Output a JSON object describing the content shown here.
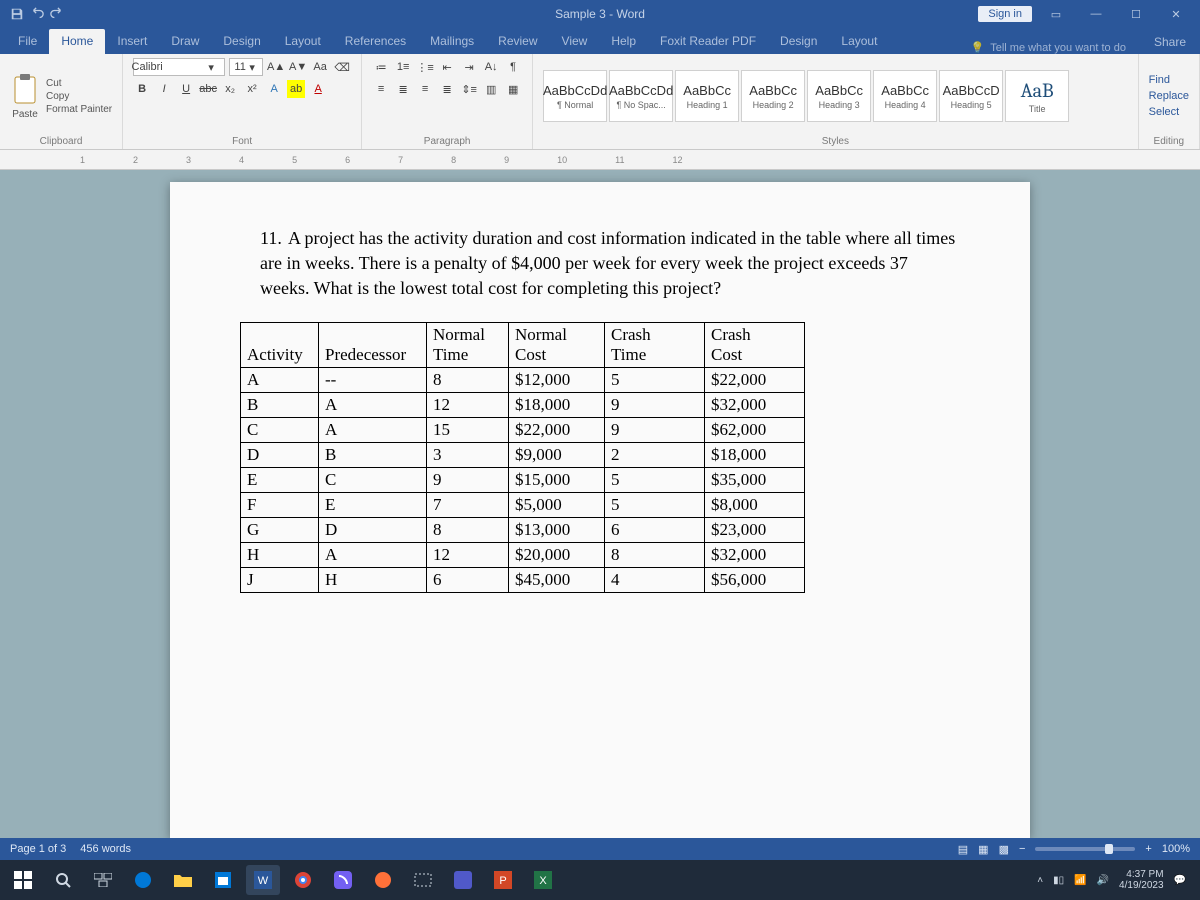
{
  "app": {
    "doc_title": "Sample 3 - Word",
    "signin": "Sign in",
    "tellme": "Tell me what you want to do",
    "share": "Share"
  },
  "tabs": {
    "file": "File",
    "home": "Home",
    "insert": "Insert",
    "draw": "Draw",
    "design": "Design",
    "layout": "Layout",
    "references": "References",
    "mailings": "Mailings",
    "review": "Review",
    "view": "View",
    "help": "Help",
    "foxit": "Foxit Reader PDF",
    "format": "Design",
    "layout2": "Layout"
  },
  "ribbon": {
    "clipboard": {
      "paste": "Paste",
      "cut": "Cut",
      "copy": "Copy",
      "painter": "Format Painter",
      "label": "Clipboard"
    },
    "font": {
      "name": "Calibri",
      "size": "11",
      "label": "Font"
    },
    "paragraph": {
      "label": "Paragraph"
    },
    "styles": {
      "label": "Styles",
      "items": [
        {
          "sample": "AaBbCcDd",
          "name": "¶ Normal"
        },
        {
          "sample": "AaBbCcDd",
          "name": "¶ No Spac..."
        },
        {
          "sample": "AaBbCc",
          "name": "Heading 1"
        },
        {
          "sample": "AaBbCc",
          "name": "Heading 2"
        },
        {
          "sample": "AaBbCc",
          "name": "Heading 3"
        },
        {
          "sample": "AaBbCc",
          "name": "Heading 4"
        },
        {
          "sample": "AaBbCcD",
          "name": "Heading 5"
        },
        {
          "sample": "AaB",
          "name": "Title"
        }
      ]
    },
    "editing": {
      "find": "Find",
      "replace": "Replace",
      "select": "Select",
      "label": "Editing"
    }
  },
  "document": {
    "question_number": "11.",
    "question_text": "A project has the activity duration and cost information indicated in the table where all times are in weeks. There is a penalty of $4,000 per week for every week the project exceeds 37 weeks. What is the lowest total cost for completing this project?",
    "table": {
      "columns": [
        "Activity",
        "Predecessor",
        "Normal Time",
        "Normal Cost",
        "Crash Time",
        "Crash Cost"
      ],
      "rows": [
        [
          "A",
          "--",
          "8",
          "$12,000",
          "5",
          "$22,000"
        ],
        [
          "B",
          "A",
          "12",
          "$18,000",
          "9",
          "$32,000"
        ],
        [
          "C",
          "A",
          "15",
          "$22,000",
          "9",
          "$62,000"
        ],
        [
          "D",
          "B",
          "3",
          "$9,000",
          "2",
          "$18,000"
        ],
        [
          "E",
          "C",
          "9",
          "$15,000",
          "5",
          "$35,000"
        ],
        [
          "F",
          "E",
          "7",
          "$5,000",
          "5",
          "$8,000"
        ],
        [
          "G",
          "D",
          "8",
          "$13,000",
          "6",
          "$23,000"
        ],
        [
          "H",
          "A",
          "12",
          "$20,000",
          "8",
          "$32,000"
        ],
        [
          "J",
          "H",
          "6",
          "$45,000",
          "4",
          "$56,000"
        ]
      ]
    }
  },
  "status": {
    "page": "Page 1 of 3",
    "words": "456 words",
    "zoom": "100%"
  },
  "taskbar": {
    "time": "4:37 PM",
    "date": "4/19/2023"
  },
  "colors": {
    "word_blue": "#2b579a",
    "ribbon_bg": "#f3f3f3",
    "workspace_bg": "#97b0b8",
    "page_bg": "#fafafa",
    "taskbar_bg": "#1f2b3a"
  }
}
